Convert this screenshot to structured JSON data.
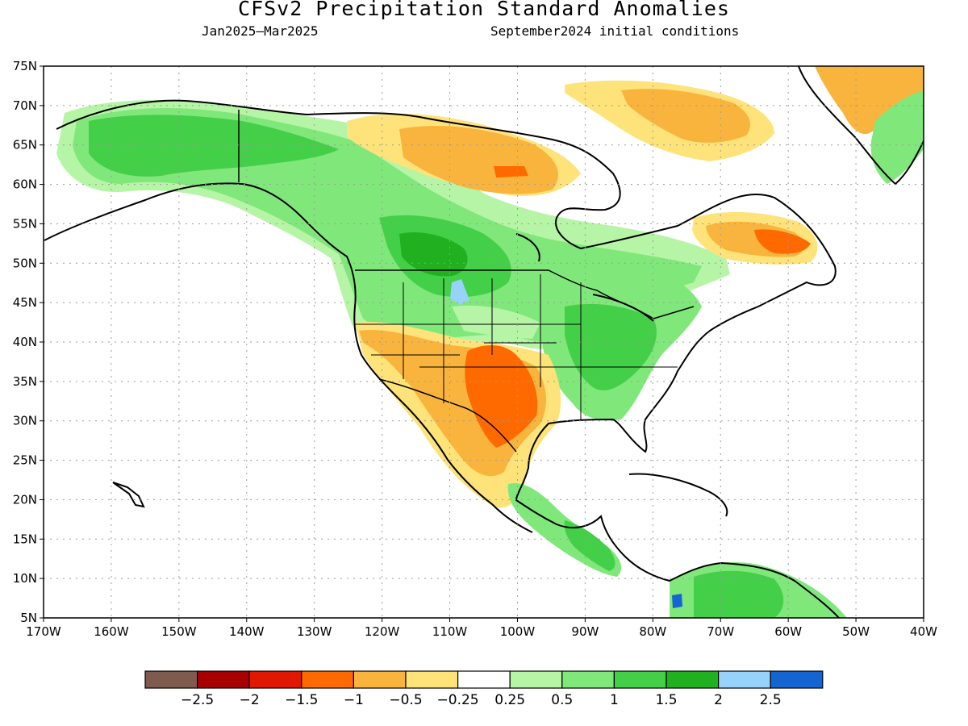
{
  "title": "CFSv2 Precipitation Standard Anomalies",
  "subtitle_left": "Jan2025—Mar2025",
  "subtitle_right": "September2024 initial conditions",
  "lat_labels": [
    "75N",
    "70N",
    "65N",
    "60N",
    "55N",
    "50N",
    "45N",
    "40N",
    "35N",
    "30N",
    "25N",
    "20N",
    "15N",
    "10N",
    "5N"
  ],
  "lon_labels": [
    "170W",
    "160W",
    "150W",
    "140W",
    "130W",
    "120W",
    "110W",
    "100W",
    "90W",
    "80W",
    "70W",
    "60W",
    "50W",
    "40W"
  ],
  "colorbar": {
    "colors": [
      "#7f5a4e",
      "#a80000",
      "#e01800",
      "#ff6a00",
      "#f9b43e",
      "#fde37a",
      "#ffffff",
      "#b5f5a5",
      "#80e77b",
      "#44cf48",
      "#20b020",
      "#96d2fa",
      "#1464d2"
    ],
    "labels": [
      "−2.5",
      "−2",
      "−1.5",
      "−1",
      "−0.5",
      "−0.25",
      "0.25",
      "0.5",
      "1",
      "1.5",
      "2",
      "2.5"
    ]
  }
}
